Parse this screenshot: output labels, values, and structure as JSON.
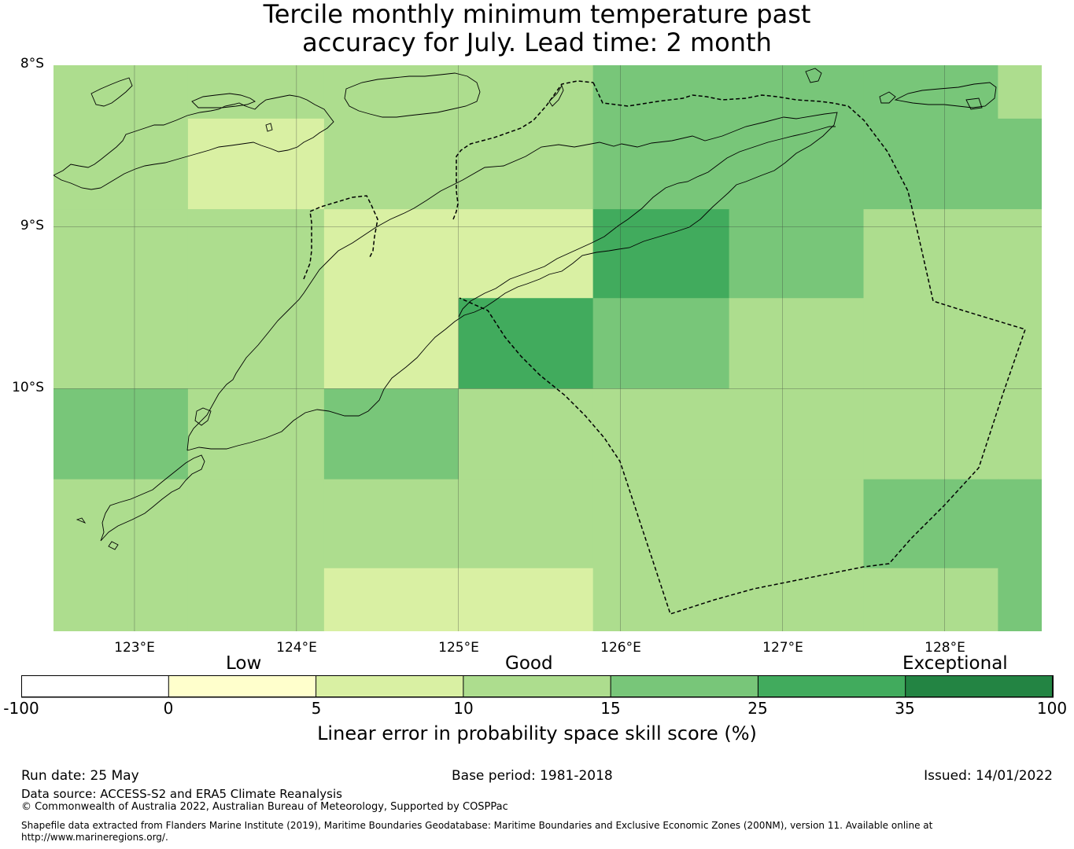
{
  "title": {
    "line1": "Tercile monthly minimum temperature past",
    "line2": "accuracy for July. Lead time: 2 month"
  },
  "map": {
    "lat_labels": [
      "8°S",
      "9°S",
      "10°S"
    ],
    "lon_labels": [
      "123°E",
      "124°E",
      "125°E",
      "126°E",
      "127°E",
      "128°E"
    ],
    "extent": {
      "lon_min": 122.5,
      "lon_max": 128.6,
      "lat_north": -8.0,
      "lat_south": -11.5
    },
    "gridlines": {
      "lons": [
        123,
        124,
        125,
        126,
        127,
        128
      ],
      "lats": [
        -9,
        -10
      ]
    },
    "cell_columns_lon": [
      122.5,
      123.33,
      124.17,
      125.0,
      125.83,
      126.67,
      127.5,
      128.33,
      128.6
    ],
    "cell_rows_lat": [
      -8.0,
      -8.33,
      -8.89,
      -9.44,
      -10.0,
      -10.56,
      -11.11,
      -11.5
    ],
    "skill_class_grid": [
      [
        3,
        3,
        3,
        3,
        4,
        4,
        4,
        3
      ],
      [
        3,
        2,
        3,
        3,
        4,
        4,
        4,
        4
      ],
      [
        3,
        3,
        2,
        2,
        5,
        4,
        3,
        3
      ],
      [
        3,
        3,
        2,
        5,
        4,
        3,
        3,
        3
      ],
      [
        4,
        3,
        4,
        3,
        3,
        3,
        3,
        3
      ],
      [
        3,
        3,
        3,
        3,
        3,
        3,
        4,
        4
      ],
      [
        3,
        3,
        2,
        2,
        3,
        3,
        3,
        4
      ]
    ]
  },
  "colorbar": {
    "category_labels": {
      "low": "Low",
      "good": "Good",
      "exceptional": "Exceptional"
    },
    "ticks": [
      "-100",
      "0",
      "5",
      "10",
      "15",
      "25",
      "35",
      "100"
    ],
    "colors": [
      "#ffffff",
      "#ffffcc",
      "#d9f0a3",
      "#addd8e",
      "#78c679",
      "#41ab5d",
      "#238443"
    ],
    "caption": "Linear error in probability space skill score (%)"
  },
  "footer": {
    "run_date": "Run date: 25 May",
    "base_period": "Base period: 1981-2018",
    "issued": "Issued: 14/01/2022",
    "data_source": "Data source: ACCESS-S2 and ERA5 Climate Reanalysis",
    "copyright": "© Commonwealth of Australia 2022, Australian Bureau of Meteorology, Supported by COSPPac",
    "shapefile_line1": "Shapefile data extracted from Flanders Marine Institute (2019), Maritime Boundaries Geodatabase: Maritime Boundaries and Exclusive Economic Zones (200NM), version 11. Available online at",
    "shapefile_line2": "http://www.marineregions.org/."
  }
}
